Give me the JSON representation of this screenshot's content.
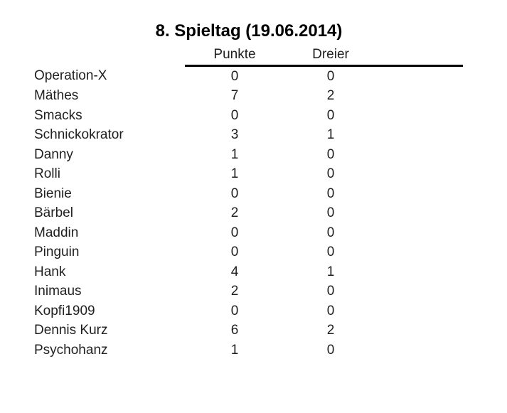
{
  "title": "8. Spieltag (19.06.2014)",
  "header": {
    "punkte": "Punkte",
    "dreier": "Dreier"
  },
  "rows": [
    {
      "name": "Operation-X",
      "punkte": 0,
      "dreier": 0
    },
    {
      "name": "Mäthes",
      "punkte": 7,
      "dreier": 2
    },
    {
      "name": "Smacks",
      "punkte": 0,
      "dreier": 0
    },
    {
      "name": "Schnickokrator",
      "punkte": 3,
      "dreier": 1
    },
    {
      "name": "Danny",
      "punkte": 1,
      "dreier": 0
    },
    {
      "name": "Rolli",
      "punkte": 1,
      "dreier": 0
    },
    {
      "name": "Bienie",
      "punkte": 0,
      "dreier": 0
    },
    {
      "name": "Bärbel",
      "punkte": 2,
      "dreier": 0
    },
    {
      "name": "Maddin",
      "punkte": 0,
      "dreier": 0
    },
    {
      "name": "Pinguin",
      "punkte": 0,
      "dreier": 0
    },
    {
      "name": "Hank",
      "punkte": 4,
      "dreier": 1
    },
    {
      "name": "Inimaus",
      "punkte": 2,
      "dreier": 0
    },
    {
      "name": "Kopfi1909",
      "punkte": 0,
      "dreier": 0
    },
    {
      "name": "Dennis Kurz",
      "punkte": 6,
      "dreier": 2
    },
    {
      "name": "Psychohanz",
      "punkte": 1,
      "dreier": 0
    }
  ],
  "colors": {
    "background": "#ffffff",
    "text": "#1f1f1f",
    "title_text": "#000000",
    "rule": "#000000"
  },
  "chart_data": {
    "type": "table",
    "title": "8. Spieltag (19.06.2014)",
    "columns": [
      "",
      "Punkte",
      "Dreier"
    ],
    "rows": [
      [
        "Operation-X",
        0,
        0
      ],
      [
        "Mäthes",
        7,
        2
      ],
      [
        "Smacks",
        0,
        0
      ],
      [
        "Schnickokrator",
        3,
        1
      ],
      [
        "Danny",
        1,
        0
      ],
      [
        "Rolli",
        1,
        0
      ],
      [
        "Bienie",
        0,
        0
      ],
      [
        "Bärbel",
        2,
        0
      ],
      [
        "Maddin",
        0,
        0
      ],
      [
        "Pinguin",
        0,
        0
      ],
      [
        "Hank",
        4,
        1
      ],
      [
        "Inimaus",
        2,
        0
      ],
      [
        "Kopfi1909",
        0,
        0
      ],
      [
        "Dennis Kurz",
        6,
        2
      ],
      [
        "Psychohanz",
        1,
        0
      ]
    ],
    "layout_hints": {
      "header_rule_under": [
        "Punkte",
        "Dreier"
      ],
      "name_column_align": "left",
      "value_columns_align": "center",
      "grid": "header-rule-only"
    }
  }
}
